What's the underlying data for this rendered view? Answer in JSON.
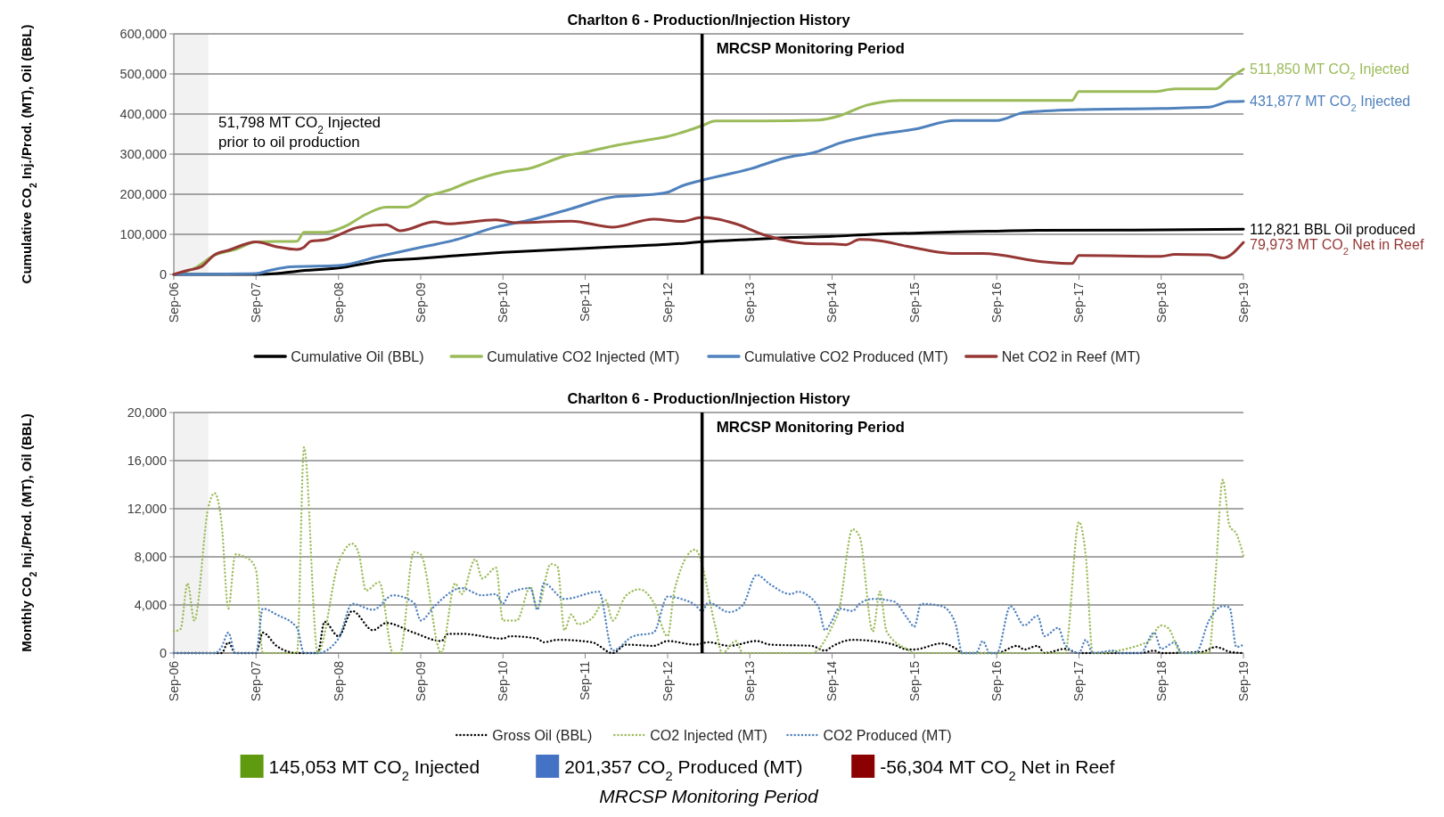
{
  "chart_data": [
    {
      "type": "line",
      "title": "Charlton 6 - Production/Injection History",
      "ylabel": "Cumulative CO$_{2}$ Inj./Prod. (MT), Oil (BBL)",
      "line_style": "solid",
      "grid": "y",
      "legend": "bottom",
      "xlim": [
        "2006-09",
        "2019-09"
      ],
      "xticks": [
        {
          "value": "2006-09",
          "label": "Sep-06"
        },
        {
          "value": "2007-09",
          "label": "Sep-07"
        },
        {
          "value": "2008-09",
          "label": "Sep-08"
        },
        {
          "value": "2009-09",
          "label": "Sep-09"
        },
        {
          "value": "2010-09",
          "label": "Sep-10"
        },
        {
          "value": "2011-09",
          "label": "Sep-11"
        },
        {
          "value": "2012-09",
          "label": "Sep-12"
        },
        {
          "value": "2013-09",
          "label": "Sep-13"
        },
        {
          "value": "2014-09",
          "label": "Sep-14"
        },
        {
          "value": "2015-09",
          "label": "Sep-15"
        },
        {
          "value": "2016-09",
          "label": "Sep-16"
        },
        {
          "value": "2017-09",
          "label": "Sep-17"
        },
        {
          "value": "2018-09",
          "label": "Sep-18"
        },
        {
          "value": "2019-09",
          "label": "Sep-19"
        }
      ],
      "ylim": [
        0,
        600000
      ],
      "yticks": [
        0,
        {
          "value": 100000,
          "label": "100,000"
        },
        {
          "value": 200000,
          "label": "200,000"
        },
        {
          "value": 300000,
          "label": "300,000"
        },
        {
          "value": 400000,
          "label": "400,000"
        },
        {
          "value": 500000,
          "label": "500,000"
        },
        {
          "value": 600000,
          "label": "600,000"
        }
      ],
      "bands": [
        {
          "axis": "x",
          "from": "2006-09",
          "to": "2007-02",
          "color": "#f2f2f2"
        }
      ],
      "ref_lines": [
        {
          "axis": "x",
          "value": "2013-02",
          "label": "MRCSP Monitoring Period",
          "color": "#000000"
        }
      ],
      "annotations": [
        "51,798 MT CO$_{2}$ Injected\nprior to oil production",
        {
          "text": "511,850 MT CO$_{2}$ Injected",
          "x": "2019-09",
          "y": 511850
        },
        {
          "text": "431,877 MT CO$_{2}$ Injected",
          "x": "2019-09",
          "y": 431877
        },
        {
          "text": "112,821 BBL Oil produced",
          "x": "2019-09",
          "y": 112821
        },
        {
          "text": "79,973 MT CO$_{2}$ Net in Reef",
          "x": "2019-09",
          "y": 79973
        }
      ],
      "series": [
        {
          "name": "Cumulative Oil (BBL)",
          "color": "#000000",
          "x": [
            "2006-09",
            "2007-09",
            "2007-12",
            "2008-03",
            "2008-09",
            "2009-03",
            "2009-09",
            "2010-03",
            "2010-09",
            "2011-03",
            "2011-09",
            "2012-03",
            "2012-09",
            "2013-03",
            "2013-09",
            "2014-03",
            "2014-09",
            "2015-03",
            "2015-09",
            "2016-03",
            "2016-09",
            "2017-03",
            "2018-09",
            "2019-09"
          ],
          "values": [
            0,
            0,
            2000,
            8000,
            16000,
            33000,
            40000,
            48000,
            55000,
            60000,
            65000,
            70000,
            75000,
            82000,
            87000,
            92000,
            95000,
            100000,
            103000,
            106000,
            108000,
            110000,
            111000,
            112821
          ]
        },
        {
          "name": "Cumulative CO2 Injected (MT)",
          "color": "#9bbb59",
          "x": [
            "2006-09",
            "2006-12",
            "2007-03",
            "2007-06",
            "2007-09",
            "2008-03",
            "2008-04",
            "2008-07",
            "2008-10",
            "2009-01",
            "2009-04",
            "2009-07",
            "2009-10",
            "2010-01",
            "2010-04",
            "2010-09",
            "2011-01",
            "2011-06",
            "2011-09",
            "2012-01",
            "2012-06",
            "2012-09",
            "2012-12",
            "2013-02",
            "2013-04",
            "2013-11",
            "2014-07",
            "2014-10",
            "2015-02",
            "2015-04",
            "2015-07",
            "2017-08",
            "2017-09",
            "2018-08",
            "2018-11",
            "2019-05",
            "2019-07",
            "2019-09"
          ],
          "values": [
            0,
            15000,
            48000,
            62000,
            81000,
            83000,
            105000,
            105000,
            120000,
            150000,
            168000,
            168000,
            195000,
            210000,
            230000,
            255000,
            265000,
            295000,
            305000,
            320000,
            335000,
            344000,
            359000,
            371000,
            383000,
            383000,
            385000,
            395000,
            422000,
            429000,
            434000,
            434000,
            456000,
            456000,
            463000,
            463000,
            489000,
            511850
          ]
        },
        {
          "name": "Cumulative CO2 Produced (MT)",
          "color": "#4f81bd",
          "x": [
            "2006-09",
            "2007-09",
            "2007-11",
            "2008-02",
            "2008-09",
            "2009-03",
            "2009-10",
            "2010-02",
            "2010-08",
            "2011-01",
            "2011-07",
            "2012-01",
            "2012-05",
            "2012-09",
            "2012-11",
            "2013-02",
            "2013-09",
            "2014-02",
            "2014-07",
            "2014-10",
            "2015-03",
            "2015-09",
            "2016-03",
            "2016-09",
            "2017-01",
            "2017-09",
            "2018-09",
            "2019-04",
            "2019-07",
            "2019-09"
          ],
          "values": [
            0,
            2000,
            10000,
            19000,
            22000,
            45000,
            71000,
            86000,
            118000,
            136000,
            164000,
            193000,
            197000,
            205000,
            220000,
            235000,
            263000,
            290000,
            307000,
            327000,
            347000,
            362000,
            384000,
            384000,
            404000,
            411000,
            414000,
            417000,
            431000,
            431877
          ]
        },
        {
          "name": "Net CO2 in Reef (MT)",
          "color": "#953735",
          "x": [
            "2006-09",
            "2006-11",
            "2007-01",
            "2007-03",
            "2007-05",
            "2007-09",
            "2007-12",
            "2008-03",
            "2008-04",
            "2008-05",
            "2008-07",
            "2008-12",
            "2009-04",
            "2009-06",
            "2009-11",
            "2010-01",
            "2010-08",
            "2010-11",
            "2011-07",
            "2012-01",
            "2012-07",
            "2012-11",
            "2013-02",
            "2013-04",
            "2013-07",
            "2013-11",
            "2014-07",
            "2014-09",
            "2014-11",
            "2015-01",
            "2015-04",
            "2015-08",
            "2016-03",
            "2016-07",
            "2017-04",
            "2017-08",
            "2017-09",
            "2018-09",
            "2018-11",
            "2019-04",
            "2019-06",
            "2019-09"
          ],
          "values": [
            0,
            10000,
            19000,
            49000,
            60000,
            81000,
            69000,
            62000,
            68000,
            83000,
            86000,
            118000,
            124000,
            109000,
            131000,
            126000,
            136000,
            129000,
            133000,
            118000,
            138000,
            132000,
            142000,
            139000,
            126000,
            99000,
            76000,
            76000,
            74000,
            87000,
            84000,
            70000,
            52000,
            52000,
            31000,
            27000,
            47000,
            45000,
            50000,
            49000,
            41000,
            79973
          ]
        }
      ]
    },
    {
      "type": "line",
      "title": "Charlton 6 - Production/Injection History",
      "ylabel": "Monthly CO$_{2}$ Inj./Prod.  (MT), Oil (BBL)",
      "line_style": "dotted",
      "grid": "y",
      "legend": "bottom",
      "xlim": [
        "2006-09",
        "2019-09"
      ],
      "xticks": [
        {
          "value": "2006-09",
          "label": "Sep-06"
        },
        {
          "value": "2007-09",
          "label": "Sep-07"
        },
        {
          "value": "2008-09",
          "label": "Sep-08"
        },
        {
          "value": "2009-09",
          "label": "Sep-09"
        },
        {
          "value": "2010-09",
          "label": "Sep-10"
        },
        {
          "value": "2011-09",
          "label": "Sep-11"
        },
        {
          "value": "2012-09",
          "label": "Sep-12"
        },
        {
          "value": "2013-09",
          "label": "Sep-13"
        },
        {
          "value": "2014-09",
          "label": "Sep-14"
        },
        {
          "value": "2015-09",
          "label": "Sep-15"
        },
        {
          "value": "2016-09",
          "label": "Sep-16"
        },
        {
          "value": "2017-09",
          "label": "Sep-17"
        },
        {
          "value": "2018-09",
          "label": "Sep-18"
        },
        {
          "value": "2019-09",
          "label": "Sep-19"
        }
      ],
      "ylim": [
        0,
        20000
      ],
      "yticks": [
        0,
        {
          "value": 4000,
          "label": "4,000"
        },
        {
          "value": 8000,
          "label": "8,000"
        },
        {
          "value": 12000,
          "label": "12,000"
        },
        {
          "value": 16000,
          "label": "16,000"
        },
        {
          "value": 20000,
          "label": "20,000"
        }
      ],
      "bands": [
        {
          "axis": "x",
          "from": "2006-09",
          "to": "2007-02",
          "color": "#f2f2f2"
        }
      ],
      "ref_lines": [
        {
          "axis": "x",
          "value": "2013-02",
          "label": "MRCSP Monitoring Period",
          "color": "#000000"
        }
      ],
      "annotations": [
        "145,053 MT CO$_{2}$ Injected",
        "201,357 CO$_{2}$ Produced (MT)",
        "-56,304 MT CO$_{2}$ Net in Reef",
        "MRCSP Monitoring Period"
      ],
      "series": [
        {
          "name": "Gross Oil (BBL)",
          "color": "#000000",
          "x": [
            "2006-09",
            "2007-04",
            "2007-05",
            "2007-06",
            "2007-09",
            "2007-10",
            "2007-12",
            "2008-03",
            "2008-06",
            "2008-07",
            "2008-09",
            "2008-11",
            "2009-02",
            "2009-04",
            "2009-08",
            "2009-12",
            "2010-01",
            "2010-03",
            "2010-09",
            "2010-10",
            "2011-02",
            "2011-03",
            "2011-05",
            "2011-10",
            "2012-01",
            "2012-03",
            "2012-07",
            "2012-09",
            "2013-01",
            "2013-03",
            "2013-06",
            "2013-10",
            "2013-12",
            "2014-06",
            "2014-08",
            "2014-09",
            "2014-12",
            "2015-03",
            "2015-06",
            "2015-08",
            "2015-09",
            "2016-01",
            "2016-03",
            "2016-04",
            "2016-09",
            "2016-12",
            "2017-01",
            "2017-03",
            "2017-04",
            "2017-07",
            "2017-09",
            "2018-06",
            "2018-08",
            "2018-09",
            "2019-03",
            "2019-05",
            "2019-06",
            "2019-07",
            "2019-09"
          ],
          "values": [
            0,
            0,
            900,
            0,
            0,
            1700,
            600,
            0,
            0,
            2600,
            1400,
            3500,
            1900,
            2500,
            1700,
            1000,
            1600,
            1600,
            1200,
            1400,
            1200,
            900,
            1100,
            900,
            0,
            700,
            600,
            1000,
            700,
            900,
            600,
            1000,
            700,
            600,
            200,
            550,
            1100,
            1000,
            700,
            300,
            300,
            800,
            400,
            0,
            0,
            600,
            300,
            600,
            0,
            350,
            0,
            0,
            200,
            0,
            100,
            500,
            350,
            100,
            0
          ]
        },
        {
          "name": "CO2 Injected (MT)",
          "color": "#9bbb59",
          "x": [
            "2006-09",
            "2006-10",
            "2006-11",
            "2006-12",
            "2007-02",
            "2007-03",
            "2007-04",
            "2007-05",
            "2007-06",
            "2007-08",
            "2007-09",
            "2007-10",
            "2008-03",
            "2008-04",
            "2008-06",
            "2008-09",
            "2008-11",
            "2008-12",
            "2009-01",
            "2009-03",
            "2009-05",
            "2009-06",
            "2009-08",
            "2009-09",
            "2009-12",
            "2010-02",
            "2010-03",
            "2010-05",
            "2010-06",
            "2010-08",
            "2010-09",
            "2010-11",
            "2011-01",
            "2011-02",
            "2011-04",
            "2011-05",
            "2011-06",
            "2011-07",
            "2011-08",
            "2011-10",
            "2011-12",
            "2012-01",
            "2012-03",
            "2012-05",
            "2012-07",
            "2012-09",
            "2012-10",
            "2013-01",
            "2013-04",
            "2013-05",
            "2013-07",
            "2013-08",
            "2014-06",
            "2014-09",
            "2014-10",
            "2014-12",
            "2015-01",
            "2015-03",
            "2015-04",
            "2015-05",
            "2015-08",
            "2015-09",
            "2017-07",
            "2017-09",
            "2017-10",
            "2017-11",
            "2018-07",
            "2018-09",
            "2018-10",
            "2018-12",
            "2019-04",
            "2019-05",
            "2019-06",
            "2019-07",
            "2019-08",
            "2019-09"
          ],
          "values": [
            1800,
            2000,
            5800,
            2700,
            12100,
            13300,
            10800,
            3700,
            8200,
            7800,
            6900,
            0,
            0,
            17100,
            0,
            7500,
            9100,
            8200,
            5200,
            5900,
            0,
            0,
            8400,
            8200,
            0,
            5800,
            4900,
            7800,
            6200,
            7100,
            2700,
            2700,
            5500,
            3700,
            7400,
            7200,
            1900,
            3200,
            2400,
            2900,
            4400,
            2700,
            4800,
            5300,
            4200,
            1400,
            5200,
            8600,
            2200,
            0,
            1000,
            0,
            0,
            2200,
            3500,
            10300,
            9700,
            1800,
            5100,
            1800,
            300,
            0,
            0,
            10900,
            8100,
            0,
            900,
            2300,
            2100,
            0,
            0,
            6700,
            14400,
            10600,
            9900,
            8100
          ]
        },
        {
          "name": "CO2 Produced (MT)",
          "color": "#4f81bd",
          "x": [
            "2006-09",
            "2007-03",
            "2007-04",
            "2007-05",
            "2007-06",
            "2007-09",
            "2007-10",
            "2007-12",
            "2008-03",
            "2008-04",
            "2008-06",
            "2008-09",
            "2008-11",
            "2009-02",
            "2009-05",
            "2009-08",
            "2009-09",
            "2009-11",
            "2010-03",
            "2010-06",
            "2010-08",
            "2010-09",
            "2010-10",
            "2011-01",
            "2011-02",
            "2011-03",
            "2011-06",
            "2011-11",
            "2012-01",
            "2012-04",
            "2012-07",
            "2012-09",
            "2012-11",
            "2013-01",
            "2013-02",
            "2013-03",
            "2013-06",
            "2013-08",
            "2013-10",
            "2013-12",
            "2014-03",
            "2014-04",
            "2014-07",
            "2014-08",
            "2014-09",
            "2014-10",
            "2014-12",
            "2015-01",
            "2015-03",
            "2015-06",
            "2015-08",
            "2015-09",
            "2015-10",
            "2016-01",
            "2016-03",
            "2016-04",
            "2016-06",
            "2016-07",
            "2016-08",
            "2016-09",
            "2016-11",
            "2017-01",
            "2017-03",
            "2017-04",
            "2017-06",
            "2017-07",
            "2017-09",
            "2017-10",
            "2017-11",
            "2018-02",
            "2018-03",
            "2018-06",
            "2018-08",
            "2018-09",
            "2018-11",
            "2018-12",
            "2019-02",
            "2019-04",
            "2019-06",
            "2019-07",
            "2019-08",
            "2019-09"
          ],
          "values": [
            0,
            0,
            500,
            1700,
            0,
            0,
            3700,
            3200,
            2100,
            0,
            0,
            1200,
            4100,
            3600,
            4800,
            4200,
            2700,
            3900,
            5400,
            4800,
            4900,
            4100,
            5000,
            5400,
            3600,
            5800,
            4500,
            5100,
            200,
            1400,
            1700,
            4700,
            4500,
            4000,
            3500,
            4200,
            3400,
            4000,
            6500,
            5700,
            4900,
            5100,
            3900,
            1900,
            2700,
            3700,
            3500,
            4100,
            4500,
            4300,
            2900,
            2200,
            4100,
            3900,
            2500,
            0,
            0,
            1000,
            0,
            0,
            3900,
            2300,
            3100,
            1400,
            2100,
            700,
            0,
            1100,
            0,
            200,
            0,
            0,
            1700,
            350,
            900,
            0,
            0,
            2700,
            3900,
            3800,
            500,
            700
          ]
        }
      ]
    }
  ]
}
